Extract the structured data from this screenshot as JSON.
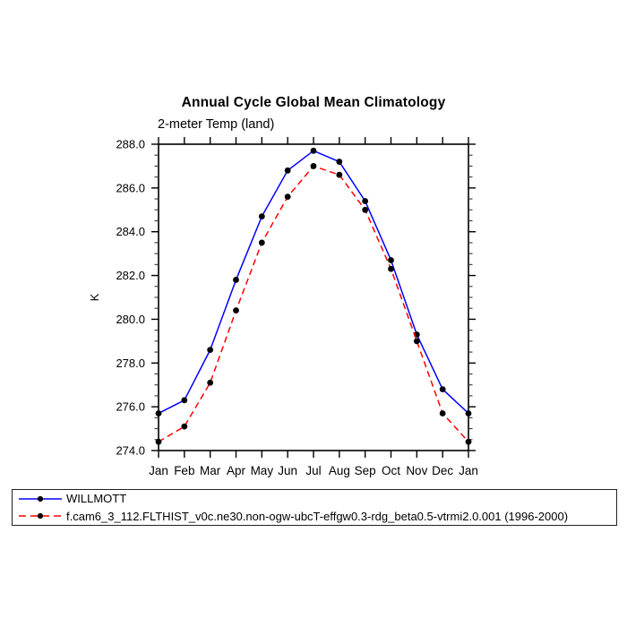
{
  "page": {
    "background": "#ffffff"
  },
  "chart_data": {
    "type": "line",
    "title": "Annual Cycle Global Mean Climatology",
    "subtitle": "2-meter Temp (land)",
    "ylabel": "K",
    "xlabel": "",
    "x_tick_labels": [
      "Jan",
      "Feb",
      "Mar",
      "Apr",
      "May",
      "Jun",
      "Jul",
      "Aug",
      "Sep",
      "Oct",
      "Nov",
      "Dec",
      "Jan"
    ],
    "y_ticks": [
      274.0,
      276.0,
      278.0,
      280.0,
      282.0,
      284.0,
      286.0,
      288.0
    ],
    "ylim": [
      274.0,
      288.0
    ],
    "y_minor_step": 0.5,
    "grid": false,
    "legend_position": "bottom",
    "colors": {
      "axis": "#000000",
      "marker": "#000000",
      "series1": "#0000ff",
      "series2": "#ff0000"
    },
    "series": [
      {
        "name": "WILLMOTT",
        "color": "#0000ff",
        "style": "solid",
        "marker": "circle",
        "marker_color": "#000000",
        "values": [
          275.7,
          276.3,
          278.6,
          281.8,
          284.7,
          286.8,
          287.7,
          287.2,
          285.4,
          282.7,
          279.3,
          276.8,
          275.7
        ]
      },
      {
        "name": "f.cam6_3_112.FLTHIST_v0c.ne30.non-ogw-ubcT-effgw0.3-rdg_beta0.5-vtrmi2.0.001 (1996-2000)",
        "color": "#ff0000",
        "style": "dashed",
        "marker": "circle",
        "marker_color": "#000000",
        "values": [
          274.4,
          275.1,
          277.1,
          280.4,
          283.5,
          285.6,
          287.0,
          286.6,
          285.0,
          282.3,
          279.0,
          275.7,
          274.4
        ]
      }
    ]
  }
}
